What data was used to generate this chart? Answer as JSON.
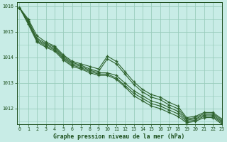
{
  "title": "Graphe pression niveau de la mer (hPa)",
  "background_color": "#c8ece6",
  "grid_color": "#99ccbb",
  "line_color": "#2d622d",
  "text_color": "#1a4d1a",
  "xlim": [
    -0.3,
    23
  ],
  "ylim": [
    1011.4,
    1016.15
  ],
  "yticks": [
    1012,
    1013,
    1014,
    1015,
    1016
  ],
  "xticks": [
    0,
    1,
    2,
    3,
    4,
    5,
    6,
    7,
    8,
    9,
    10,
    11,
    12,
    13,
    14,
    15,
    16,
    17,
    18,
    19,
    20,
    21,
    22,
    23
  ],
  "series": [
    [
      1015.95,
      1015.5,
      1014.85,
      1014.6,
      1014.45,
      1014.1,
      1013.85,
      1013.75,
      1013.65,
      1013.55,
      1014.05,
      1013.85,
      1013.45,
      1013.05,
      1012.75,
      1012.55,
      1012.45,
      1012.25,
      1012.1,
      1011.65,
      1011.7,
      1011.85,
      1011.85,
      1011.6
    ],
    [
      1015.95,
      1015.45,
      1014.75,
      1014.55,
      1014.4,
      1014.05,
      1013.8,
      1013.7,
      1013.55,
      1013.45,
      1013.95,
      1013.75,
      1013.35,
      1012.95,
      1012.65,
      1012.45,
      1012.35,
      1012.15,
      1012.0,
      1011.6,
      1011.65,
      1011.8,
      1011.8,
      1011.55
    ],
    [
      1015.95,
      1015.4,
      1014.7,
      1014.5,
      1014.35,
      1014.0,
      1013.75,
      1013.65,
      1013.5,
      1013.4,
      1013.4,
      1013.3,
      1013.0,
      1012.7,
      1012.5,
      1012.3,
      1012.2,
      1012.05,
      1011.9,
      1011.55,
      1011.6,
      1011.75,
      1011.75,
      1011.5
    ],
    [
      1015.95,
      1015.35,
      1014.65,
      1014.45,
      1014.3,
      1013.95,
      1013.7,
      1013.6,
      1013.45,
      1013.35,
      1013.35,
      1013.2,
      1012.9,
      1012.6,
      1012.4,
      1012.2,
      1012.1,
      1011.95,
      1011.8,
      1011.5,
      1011.55,
      1011.7,
      1011.7,
      1011.45
    ],
    [
      1015.95,
      1015.3,
      1014.6,
      1014.4,
      1014.25,
      1013.9,
      1013.65,
      1013.55,
      1013.4,
      1013.3,
      1013.3,
      1013.15,
      1012.85,
      1012.5,
      1012.3,
      1012.1,
      1012.0,
      1011.85,
      1011.7,
      1011.45,
      1011.5,
      1011.65,
      1011.65,
      1011.4
    ]
  ]
}
